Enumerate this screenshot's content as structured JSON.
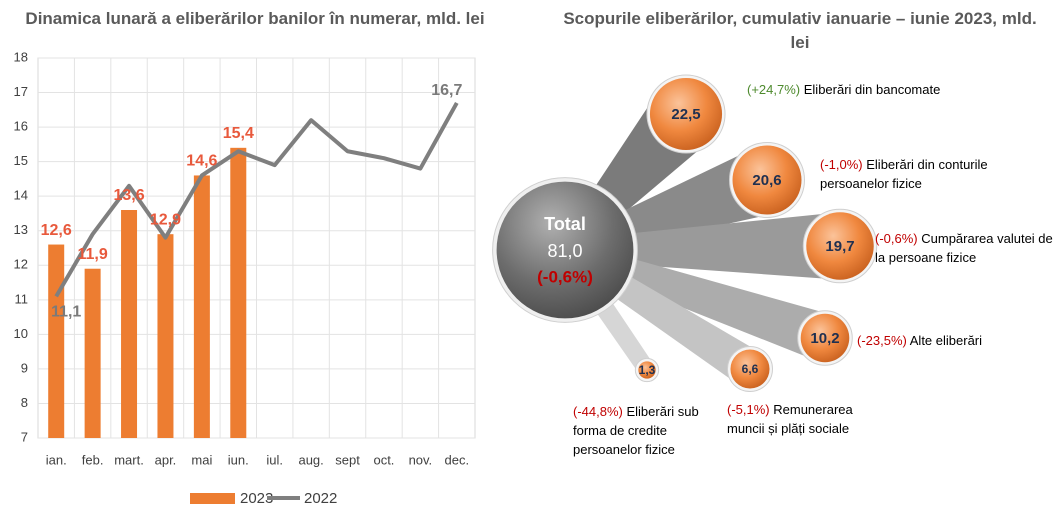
{
  "chart_data": [
    {
      "type": "combo",
      "title": "Dinamica lunară a eliberărilor banilor în numerar, mld. lei",
      "categories": [
        "ian.",
        "feb.",
        "mart.",
        "apr.",
        "mai",
        "iun.",
        "iul.",
        "aug.",
        "sept",
        "oct.",
        "nov.",
        "dec."
      ],
      "series": [
        {
          "name": "2023",
          "type": "bar",
          "color": "#ed7d31",
          "values": [
            12.6,
            11.9,
            13.6,
            12.9,
            14.6,
            15.4,
            null,
            null,
            null,
            null,
            null,
            null
          ],
          "value_labels": [
            "12,6",
            "11,9",
            "13,6",
            "12,9",
            "14,6",
            "15,4",
            null,
            null,
            null,
            null,
            null,
            null
          ]
        },
        {
          "name": "2022",
          "type": "line",
          "color": "#7f7f7f",
          "values": [
            11.1,
            12.9,
            14.3,
            12.8,
            14.6,
            15.3,
            14.9,
            16.2,
            15.3,
            15.1,
            14.8,
            16.7
          ],
          "value_labels": [
            "11,1",
            null,
            null,
            null,
            null,
            null,
            null,
            null,
            null,
            null,
            null,
            "16,7"
          ]
        }
      ],
      "ylim": [
        7,
        18
      ],
      "yticks": [
        7,
        8,
        9,
        10,
        11,
        12,
        13,
        14,
        15,
        16,
        17,
        18
      ],
      "grid": true,
      "legend": "bottom"
    },
    {
      "type": "bubble",
      "title": "Scopurile eliberărilor, cumulativ ianuarie – iunie 2023, mld. lei",
      "total": {
        "name": "Total",
        "value": 81.0,
        "value_label": "81,0",
        "change": -0.6,
        "change_label": "(-0,6%)"
      },
      "names": [
        "Eliberări din bancomate",
        "Eliberări din conturile persoanelor fizice",
        "Cumpărarea valutei de la persoane fizice",
        "Alte eliberări",
        "Remunerarea muncii și plăți sociale",
        "Eliberări sub forma de credite persoanelor fizice"
      ],
      "values": [
        22.5,
        20.6,
        19.7,
        10.2,
        6.6,
        1.3
      ],
      "value_labels": [
        "22,5",
        "20,6",
        "19,7",
        "10,2",
        "6,6",
        "1,3"
      ],
      "changes": [
        24.7,
        -1.0,
        -0.6,
        -23.5,
        -5.1,
        -44.8
      ],
      "change_labels": [
        "(+24,7%)",
        "(-1,0%)",
        "(-0,6%)",
        "(-23,5%)",
        "(-5,1%)",
        "(-44,8%)"
      ],
      "positive_color": "#4e8a2e",
      "negative_color": "#c00000"
    }
  ]
}
